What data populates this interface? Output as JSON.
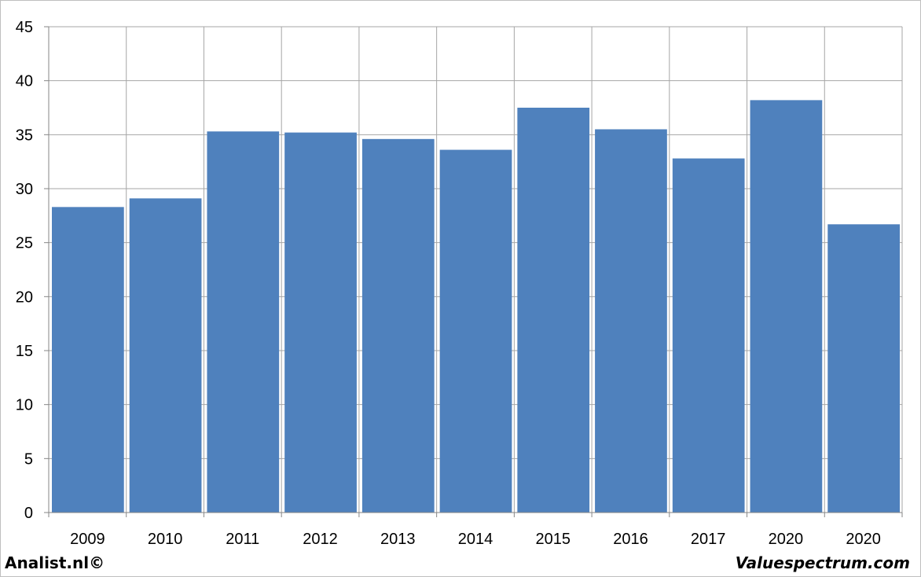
{
  "chart_data": {
    "type": "bar",
    "title": "",
    "xlabel": "",
    "ylabel": "",
    "categories": [
      "2009",
      "2010",
      "2011",
      "2012",
      "2013",
      "2014",
      "2015",
      "2016",
      "2017",
      "2020",
      "2020"
    ],
    "values": [
      28.3,
      29.1,
      35.3,
      35.2,
      34.6,
      33.6,
      37.5,
      35.5,
      32.8,
      38.2,
      26.7
    ],
    "ylim": [
      0,
      45
    ],
    "yticks": [
      0,
      5,
      10,
      15,
      20,
      25,
      30,
      35,
      40,
      45
    ],
    "grid": true,
    "legend": "none",
    "colors": {
      "bar": "#4f81bd",
      "grid": "#a6a6a6",
      "axis": "#868686"
    }
  },
  "footer": {
    "left_text": "Analist.nl©",
    "right_text": "Valuespectrum.com"
  }
}
